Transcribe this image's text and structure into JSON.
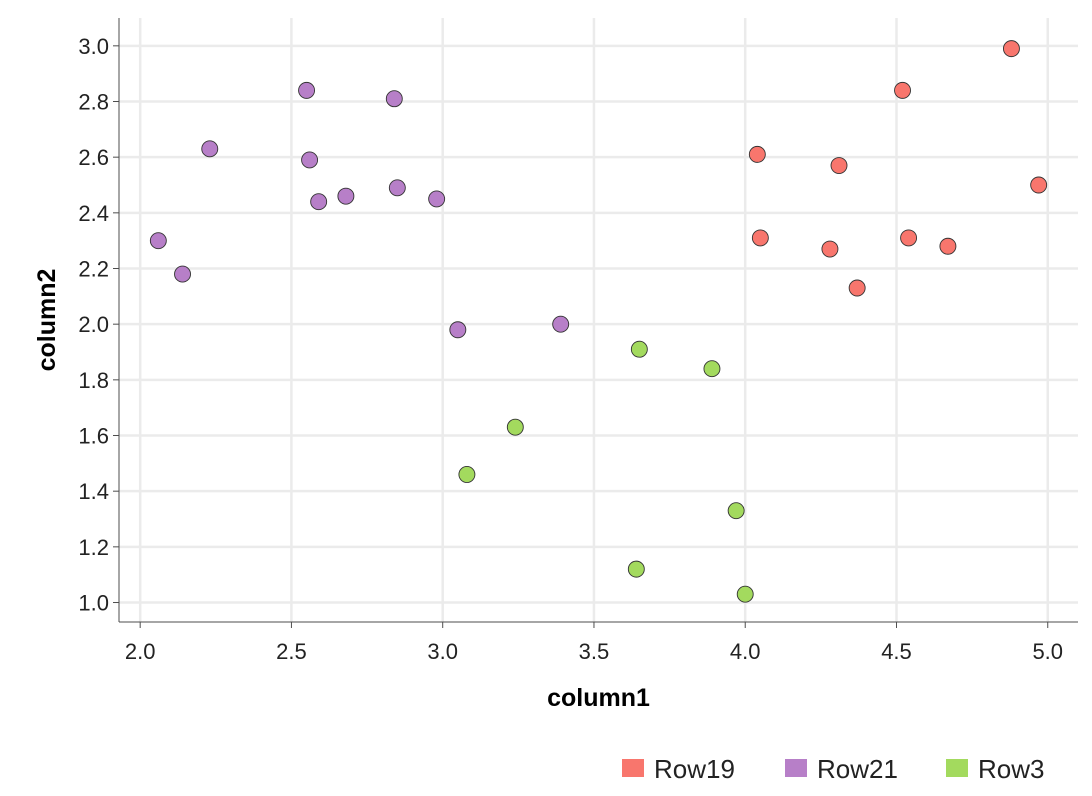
{
  "chart_data": {
    "type": "scatter",
    "title": "",
    "xlabel": "column1",
    "ylabel": "column2",
    "xlim": [
      1.93,
      5.1
    ],
    "ylim": [
      0.93,
      3.1
    ],
    "x_ticks": [
      2.0,
      2.5,
      3.0,
      3.5,
      4.0,
      4.5,
      5.0
    ],
    "y_ticks": [
      1.0,
      1.2,
      1.4,
      1.6,
      1.8,
      2.0,
      2.2,
      2.4,
      2.6,
      2.8,
      3.0
    ],
    "x_tick_labels": [
      "2.0",
      "2.5",
      "3.0",
      "3.5",
      "4.0",
      "4.5",
      "5.0"
    ],
    "y_tick_labels": [
      "1.0",
      "1.2",
      "1.4",
      "1.6",
      "1.8",
      "2.0",
      "2.2",
      "2.4",
      "2.6",
      "2.8",
      "3.0"
    ],
    "grid": true,
    "legend_position": "bottom-right",
    "series": [
      {
        "name": "Row19",
        "color": "#F8766D",
        "points": [
          {
            "x": 4.88,
            "y": 2.99
          },
          {
            "x": 4.52,
            "y": 2.84
          },
          {
            "x": 4.04,
            "y": 2.61
          },
          {
            "x": 4.31,
            "y": 2.57
          },
          {
            "x": 4.97,
            "y": 2.5
          },
          {
            "x": 4.05,
            "y": 2.31
          },
          {
            "x": 4.54,
            "y": 2.31
          },
          {
            "x": 4.28,
            "y": 2.27
          },
          {
            "x": 4.67,
            "y": 2.28
          },
          {
            "x": 4.37,
            "y": 2.13
          }
        ]
      },
      {
        "name": "Row21",
        "color": "#B77FC8",
        "points": [
          {
            "x": 2.55,
            "y": 2.84
          },
          {
            "x": 2.84,
            "y": 2.81
          },
          {
            "x": 2.23,
            "y": 2.63
          },
          {
            "x": 2.56,
            "y": 2.59
          },
          {
            "x": 2.68,
            "y": 2.46
          },
          {
            "x": 2.59,
            "y": 2.44
          },
          {
            "x": 2.85,
            "y": 2.49
          },
          {
            "x": 2.98,
            "y": 2.45
          },
          {
            "x": 2.06,
            "y": 2.3
          },
          {
            "x": 2.14,
            "y": 2.18
          },
          {
            "x": 3.05,
            "y": 1.98
          },
          {
            "x": 3.39,
            "y": 2.0
          }
        ]
      },
      {
        "name": "Row3",
        "color": "#A3DA5E",
        "points": [
          {
            "x": 3.65,
            "y": 1.91
          },
          {
            "x": 3.89,
            "y": 1.84
          },
          {
            "x": 3.24,
            "y": 1.63
          },
          {
            "x": 3.08,
            "y": 1.46
          },
          {
            "x": 3.97,
            "y": 1.33
          },
          {
            "x": 3.64,
            "y": 1.12
          },
          {
            "x": 4.0,
            "y": 1.03
          }
        ]
      }
    ]
  }
}
